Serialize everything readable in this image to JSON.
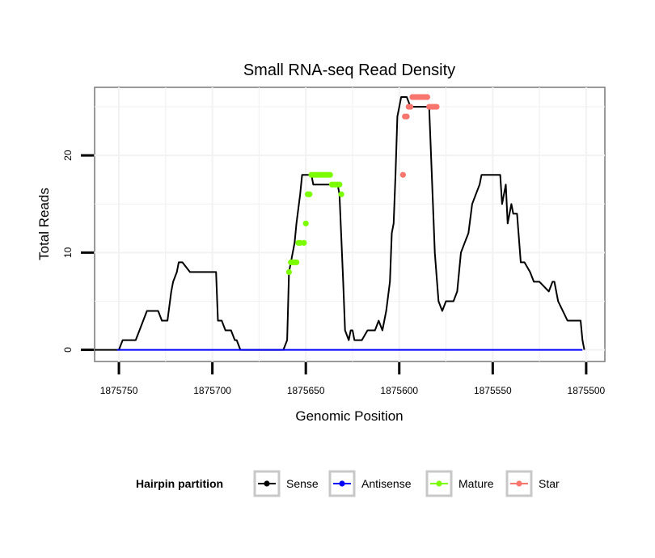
{
  "chart_data": {
    "type": "line",
    "title": "Small RNA-seq Read Density",
    "xlabel": "Genomic Position",
    "ylabel": "Total Reads",
    "x_reversed": true,
    "xlim": [
      1875763,
      1875490
    ],
    "ylim": [
      -1.2,
      27
    ],
    "xticks": [
      1875750,
      1875700,
      1875650,
      1875600,
      1875550,
      1875500
    ],
    "xtick_labels": [
      "1875750",
      "1875700",
      "1875650",
      "1875600",
      "1875550",
      "1875500"
    ],
    "yticks": [
      0,
      10,
      20
    ],
    "ytick_labels": [
      "0",
      "10",
      "20"
    ],
    "grid": true,
    "legend": {
      "title": "Hairpin partition",
      "position": "bottom",
      "items": [
        {
          "label": "Sense",
          "color": "#000000"
        },
        {
          "label": "Antisense",
          "color": "#0000ff"
        },
        {
          "label": "Mature",
          "color": "#7cfc00"
        },
        {
          "label": "Star",
          "color": "#f8766d"
        }
      ]
    },
    "series": [
      {
        "name": "Sense",
        "color": "#000000",
        "kind": "line",
        "x": [
          1875750,
          1875748,
          1875741,
          1875739,
          1875737,
          1875735,
          1875729,
          1875727,
          1875724,
          1875722,
          1875721,
          1875719,
          1875718,
          1875716,
          1875712,
          1875711,
          1875698,
          1875697,
          1875695,
          1875693,
          1875690,
          1875688,
          1875687,
          1875685,
          1875674,
          1875662,
          1875660,
          1875659,
          1875658,
          1875656,
          1875655,
          1875653,
          1875652,
          1875650,
          1875649,
          1875647,
          1875646,
          1875644,
          1875633,
          1875632,
          1875630,
          1875629,
          1875627,
          1875626,
          1875625,
          1875624,
          1875622,
          1875620,
          1875617,
          1875615,
          1875613,
          1875611,
          1875609,
          1875607,
          1875605,
          1875604,
          1875603,
          1875602,
          1875601,
          1875600,
          1875599,
          1875597,
          1875596,
          1875594,
          1875584,
          1875582,
          1875581,
          1875579,
          1875577,
          1875575,
          1875573,
          1875571,
          1875569,
          1875567,
          1875565,
          1875563,
          1875561,
          1875559,
          1875557,
          1875556,
          1875554,
          1875552,
          1875546,
          1875545,
          1875543,
          1875542,
          1875540,
          1875539,
          1875537,
          1875535,
          1875533,
          1875530,
          1875528,
          1875525,
          1875520,
          1875518,
          1875517,
          1875515,
          1875510,
          1875508,
          1875503,
          1875502,
          1875501
        ],
        "y": [
          0,
          1,
          1,
          2,
          3,
          4,
          4,
          3,
          3,
          6,
          7,
          8,
          9,
          9,
          8,
          8,
          8,
          3,
          3,
          2,
          2,
          1,
          1,
          0,
          0,
          0,
          1,
          8,
          9,
          11,
          13,
          16,
          18,
          18,
          18,
          18,
          17,
          17,
          17,
          16,
          7,
          2,
          1,
          2,
          2,
          1,
          1,
          1,
          2,
          2,
          2,
          3,
          2,
          4,
          7,
          12,
          13,
          18,
          24,
          25,
          26,
          26,
          26,
          25,
          25,
          15,
          10,
          5,
          4,
          5,
          5,
          5,
          6,
          10,
          11,
          12,
          15,
          16,
          17,
          18,
          18,
          18,
          18,
          15,
          17,
          13,
          15,
          14,
          14,
          9,
          9,
          8,
          7,
          7,
          6,
          7,
          7,
          5,
          3,
          3,
          3,
          1,
          0
        ],
        "pre_x": [
          1875763,
          1875750
        ],
        "pre_y": [
          0,
          0
        ]
      },
      {
        "name": "Antisense",
        "color": "#0000ff",
        "kind": "line",
        "x": [
          1875751,
          1875502
        ],
        "y": [
          0,
          0
        ]
      },
      {
        "name": "Mature",
        "color": "#7cfc00",
        "kind": "points",
        "x": [
          1875659,
          1875658,
          1875657,
          1875656,
          1875655,
          1875654,
          1875653,
          1875651,
          1875650,
          1875649,
          1875648,
          1875647,
          1875646,
          1875645,
          1875644,
          1875643,
          1875642,
          1875641,
          1875640,
          1875639,
          1875638,
          1875637,
          1875636,
          1875635,
          1875634,
          1875633,
          1875632,
          1875631
        ],
        "y": [
          8,
          9,
          9,
          9,
          9,
          11,
          11,
          11,
          13,
          16,
          16,
          18,
          18,
          18,
          18,
          18,
          18,
          18,
          18,
          18,
          18,
          18,
          17,
          17,
          17,
          17,
          17,
          16
        ]
      },
      {
        "name": "Star",
        "color": "#f8766d",
        "kind": "points",
        "x": [
          1875598,
          1875597,
          1875596,
          1875595,
          1875594,
          1875593,
          1875592,
          1875591,
          1875590,
          1875589,
          1875588,
          1875587,
          1875586,
          1875585,
          1875584,
          1875583,
          1875582,
          1875581,
          1875580
        ],
        "y": [
          18,
          24,
          24,
          25,
          25,
          26,
          26,
          26,
          26,
          26,
          26,
          26,
          26,
          26,
          25,
          25,
          25,
          25,
          25
        ]
      }
    ]
  }
}
